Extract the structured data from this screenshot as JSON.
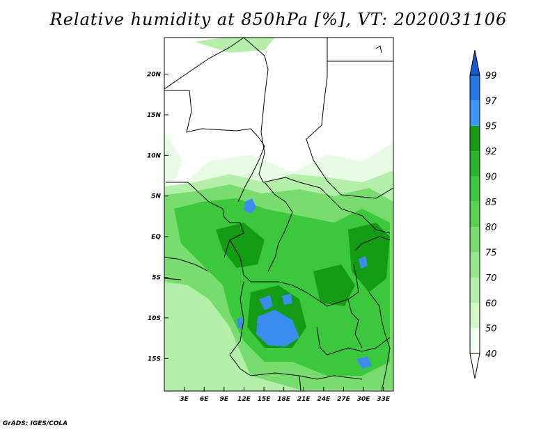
{
  "title": "Relative humidity at 850hPa [%], VT: 2020031106",
  "credit": "GrADS: IGES/COLA",
  "map": {
    "lat_range": [
      -19,
      24.5
    ],
    "lon_range": [
      0,
      34.5
    ],
    "lat_ticks": [
      {
        "value": 20,
        "label": "20N"
      },
      {
        "value": 15,
        "label": "15N"
      },
      {
        "value": 10,
        "label": "10N"
      },
      {
        "value": 5,
        "label": "5N"
      },
      {
        "value": 0,
        "label": "EQ"
      },
      {
        "value": -5,
        "label": "5S"
      },
      {
        "value": -10,
        "label": "10S"
      },
      {
        "value": -15,
        "label": "15S"
      }
    ],
    "lon_ticks": [
      {
        "value": 3,
        "label": "3E"
      },
      {
        "value": 6,
        "label": "6E"
      },
      {
        "value": 9,
        "label": "9E"
      },
      {
        "value": 12,
        "label": "12E"
      },
      {
        "value": 15,
        "label": "15E"
      },
      {
        "value": 18,
        "label": "18E"
      },
      {
        "value": 21,
        "label": "21E"
      },
      {
        "value": 24,
        "label": "24E"
      },
      {
        "value": 27,
        "label": "27E"
      },
      {
        "value": 30,
        "label": "30E"
      },
      {
        "value": 33,
        "label": "33E"
      }
    ]
  },
  "colorbar": {
    "levels": [
      "40",
      "50",
      "60",
      "70",
      "75",
      "80",
      "85",
      "90",
      "92",
      "95",
      "97",
      "99"
    ],
    "colors": [
      "#f0fff0",
      "#d2f8c8",
      "#b4f0aa",
      "#96e68c",
      "#78dc6e",
      "#5ad250",
      "#3cc83c",
      "#28b428",
      "#149b14",
      "#3c96f0",
      "#2878e1",
      "#145ad2"
    ]
  },
  "fields": {
    "colors": {
      "bg": "#ffffff",
      "l40": "#e8fbe4",
      "l60": "#b4f0aa",
      "l75": "#78dc6e",
      "l85": "#3cc83c",
      "l92": "#149b14",
      "blue": "#3c8cf0"
    }
  }
}
